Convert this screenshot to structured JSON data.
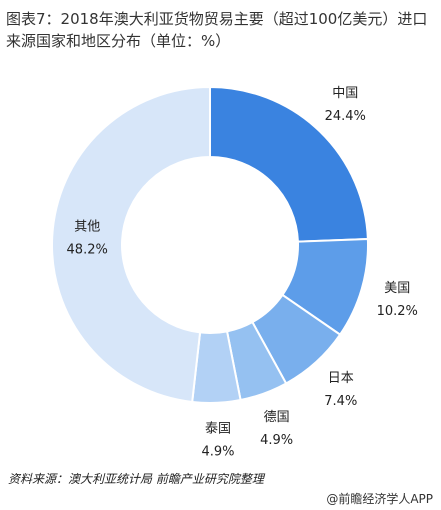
{
  "chart_data": {
    "type": "donut",
    "title": "图表7：2018年澳大利亚货物贸易主要（超过100亿美元）进口来源国家和地区分布（单位：%）",
    "categories": [
      "中国",
      "美国",
      "日本",
      "德国",
      "泰国",
      "其他"
    ],
    "values": [
      24.4,
      10.2,
      7.4,
      4.9,
      4.9,
      48.2
    ],
    "value_labels": [
      "24.4%",
      "10.2%",
      "7.4%",
      "4.9%",
      "4.9%",
      "48.2%"
    ],
    "colors": [
      "#3a83e0",
      "#5d9de9",
      "#79afed",
      "#95c1f1",
      "#b2d1f5",
      "#d7e6f9"
    ],
    "source": "资料来源：澳大利亚统计局 前瞻产业研究院整理",
    "footer": "@前瞻经济学人APP"
  }
}
